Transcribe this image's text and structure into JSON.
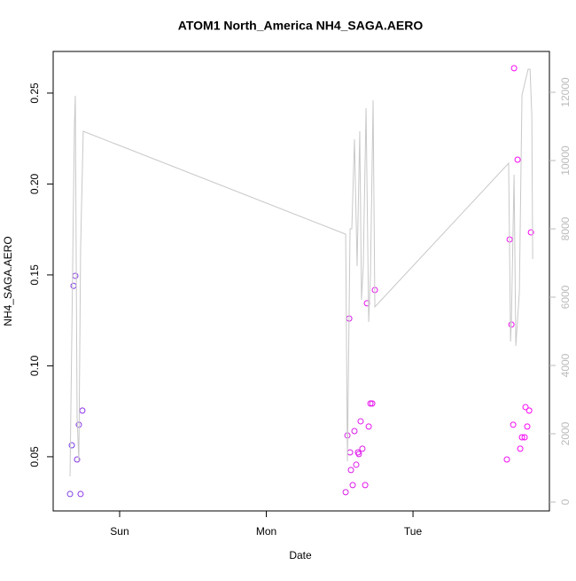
{
  "chart_data": {
    "type": "scatter",
    "title": "ATOM1 North_America NH4_SAGA.AERO",
    "xlabel": "Date",
    "ylabel": "NH4_SAGA.AERO",
    "xlim": [
      0.547,
      3.93
    ],
    "xticks": [
      {
        "value": 1,
        "label": "Sun"
      },
      {
        "value": 2,
        "label": "Mon"
      },
      {
        "value": 3,
        "label": "Tue"
      }
    ],
    "ylim": [
      0.0202,
      0.2729
    ],
    "yticks": [
      0.05,
      {
        "value": 0.1,
        "label": "0.10"
      },
      0.15,
      {
        "value": 0.2,
        "label": "0.20"
      },
      0.25
    ],
    "y2lim": [
      -260,
      13195
    ],
    "y2ticks": [
      0,
      2000,
      4000,
      6000,
      8000,
      10000,
      12000
    ],
    "series": [
      {
        "x": [
          0.662,
          0.674,
          0.686,
          0.698,
          0.71,
          0.722,
          0.734,
          0.746,
          2.541,
          2.553,
          2.565,
          2.571,
          2.577,
          2.589,
          2.601,
          2.613,
          2.625,
          2.631,
          2.643,
          2.655,
          2.674,
          2.686,
          2.698,
          2.71,
          2.722,
          2.74,
          3.64,
          3.659,
          3.671,
          3.683,
          3.689,
          3.713,
          3.731,
          3.743,
          3.761,
          3.767,
          3.779,
          3.792,
          3.804
        ],
        "values": [
          0.0295,
          0.0563,
          0.144,
          0.1495,
          0.0485,
          0.0676,
          0.0295,
          0.0754,
          0.0305,
          0.0617,
          0.126,
          0.0524,
          0.0427,
          0.0344,
          0.0641,
          0.0456,
          0.0524,
          0.0515,
          0.0695,
          0.0544,
          0.0344,
          0.1344,
          0.0666,
          0.0793,
          0.0793,
          0.1417,
          0.0485,
          0.1695,
          0.1227,
          0.0676,
          0.2637,
          0.2134,
          0.0544,
          0.0607,
          0.0607,
          0.0773,
          0.0666,
          0.0754,
          0.1734
        ],
        "colors": [
          "#7b3fe4",
          "#7d3ce6",
          "#803ae6",
          "#8338e8",
          "#8636e8",
          "#8934ea",
          "#8c32ea",
          "#8f30ec",
          "#d61ee8",
          "#d71de8",
          "#d81ce9",
          "#d91ce9",
          "#da1be9",
          "#db1aea",
          "#dc1aea",
          "#dd19ea",
          "#de18eb",
          "#df18eb",
          "#e017eb",
          "#e116ec",
          "#e215ec",
          "#e314ec",
          "#e414ed",
          "#e513ed",
          "#e612ed",
          "#e711ee",
          "#f10cf2",
          "#f20bf2",
          "#f30bf3",
          "#f40af3",
          "#f509f4",
          "#f608f4",
          "#f707f5",
          "#f806f5",
          "#f905f6",
          "#fa04f6",
          "#fb03f7",
          "#fc02f7",
          "#fd01f8"
        ]
      },
      {
        "type": "line",
        "axis": "y2",
        "color": "#c8c8c8",
        "x": [
          0.662,
          0.692,
          0.698,
          0.71,
          0.722,
          0.734,
          0.752,
          2.541,
          2.553,
          2.571,
          2.583,
          2.601,
          2.619,
          2.637,
          2.649,
          2.661,
          2.68,
          2.698,
          2.71,
          2.728,
          2.74,
          3.652,
          3.665,
          3.671,
          3.689,
          3.701,
          3.725,
          3.743,
          3.785,
          3.798,
          3.81,
          3.816
        ],
        "values": [
          753,
          11065,
          11896,
          2494,
          1195,
          7429,
          10857,
          7844,
          1195,
          8000,
          8000,
          10623,
          6909,
          10857,
          5922,
          6909,
          11532,
          5273,
          6649,
          11766,
          5714,
          9922,
          4701,
          5351,
          9584,
          4571,
          6130,
          11922,
          12675,
          12675,
          11325,
          7117
        ]
      }
    ]
  }
}
